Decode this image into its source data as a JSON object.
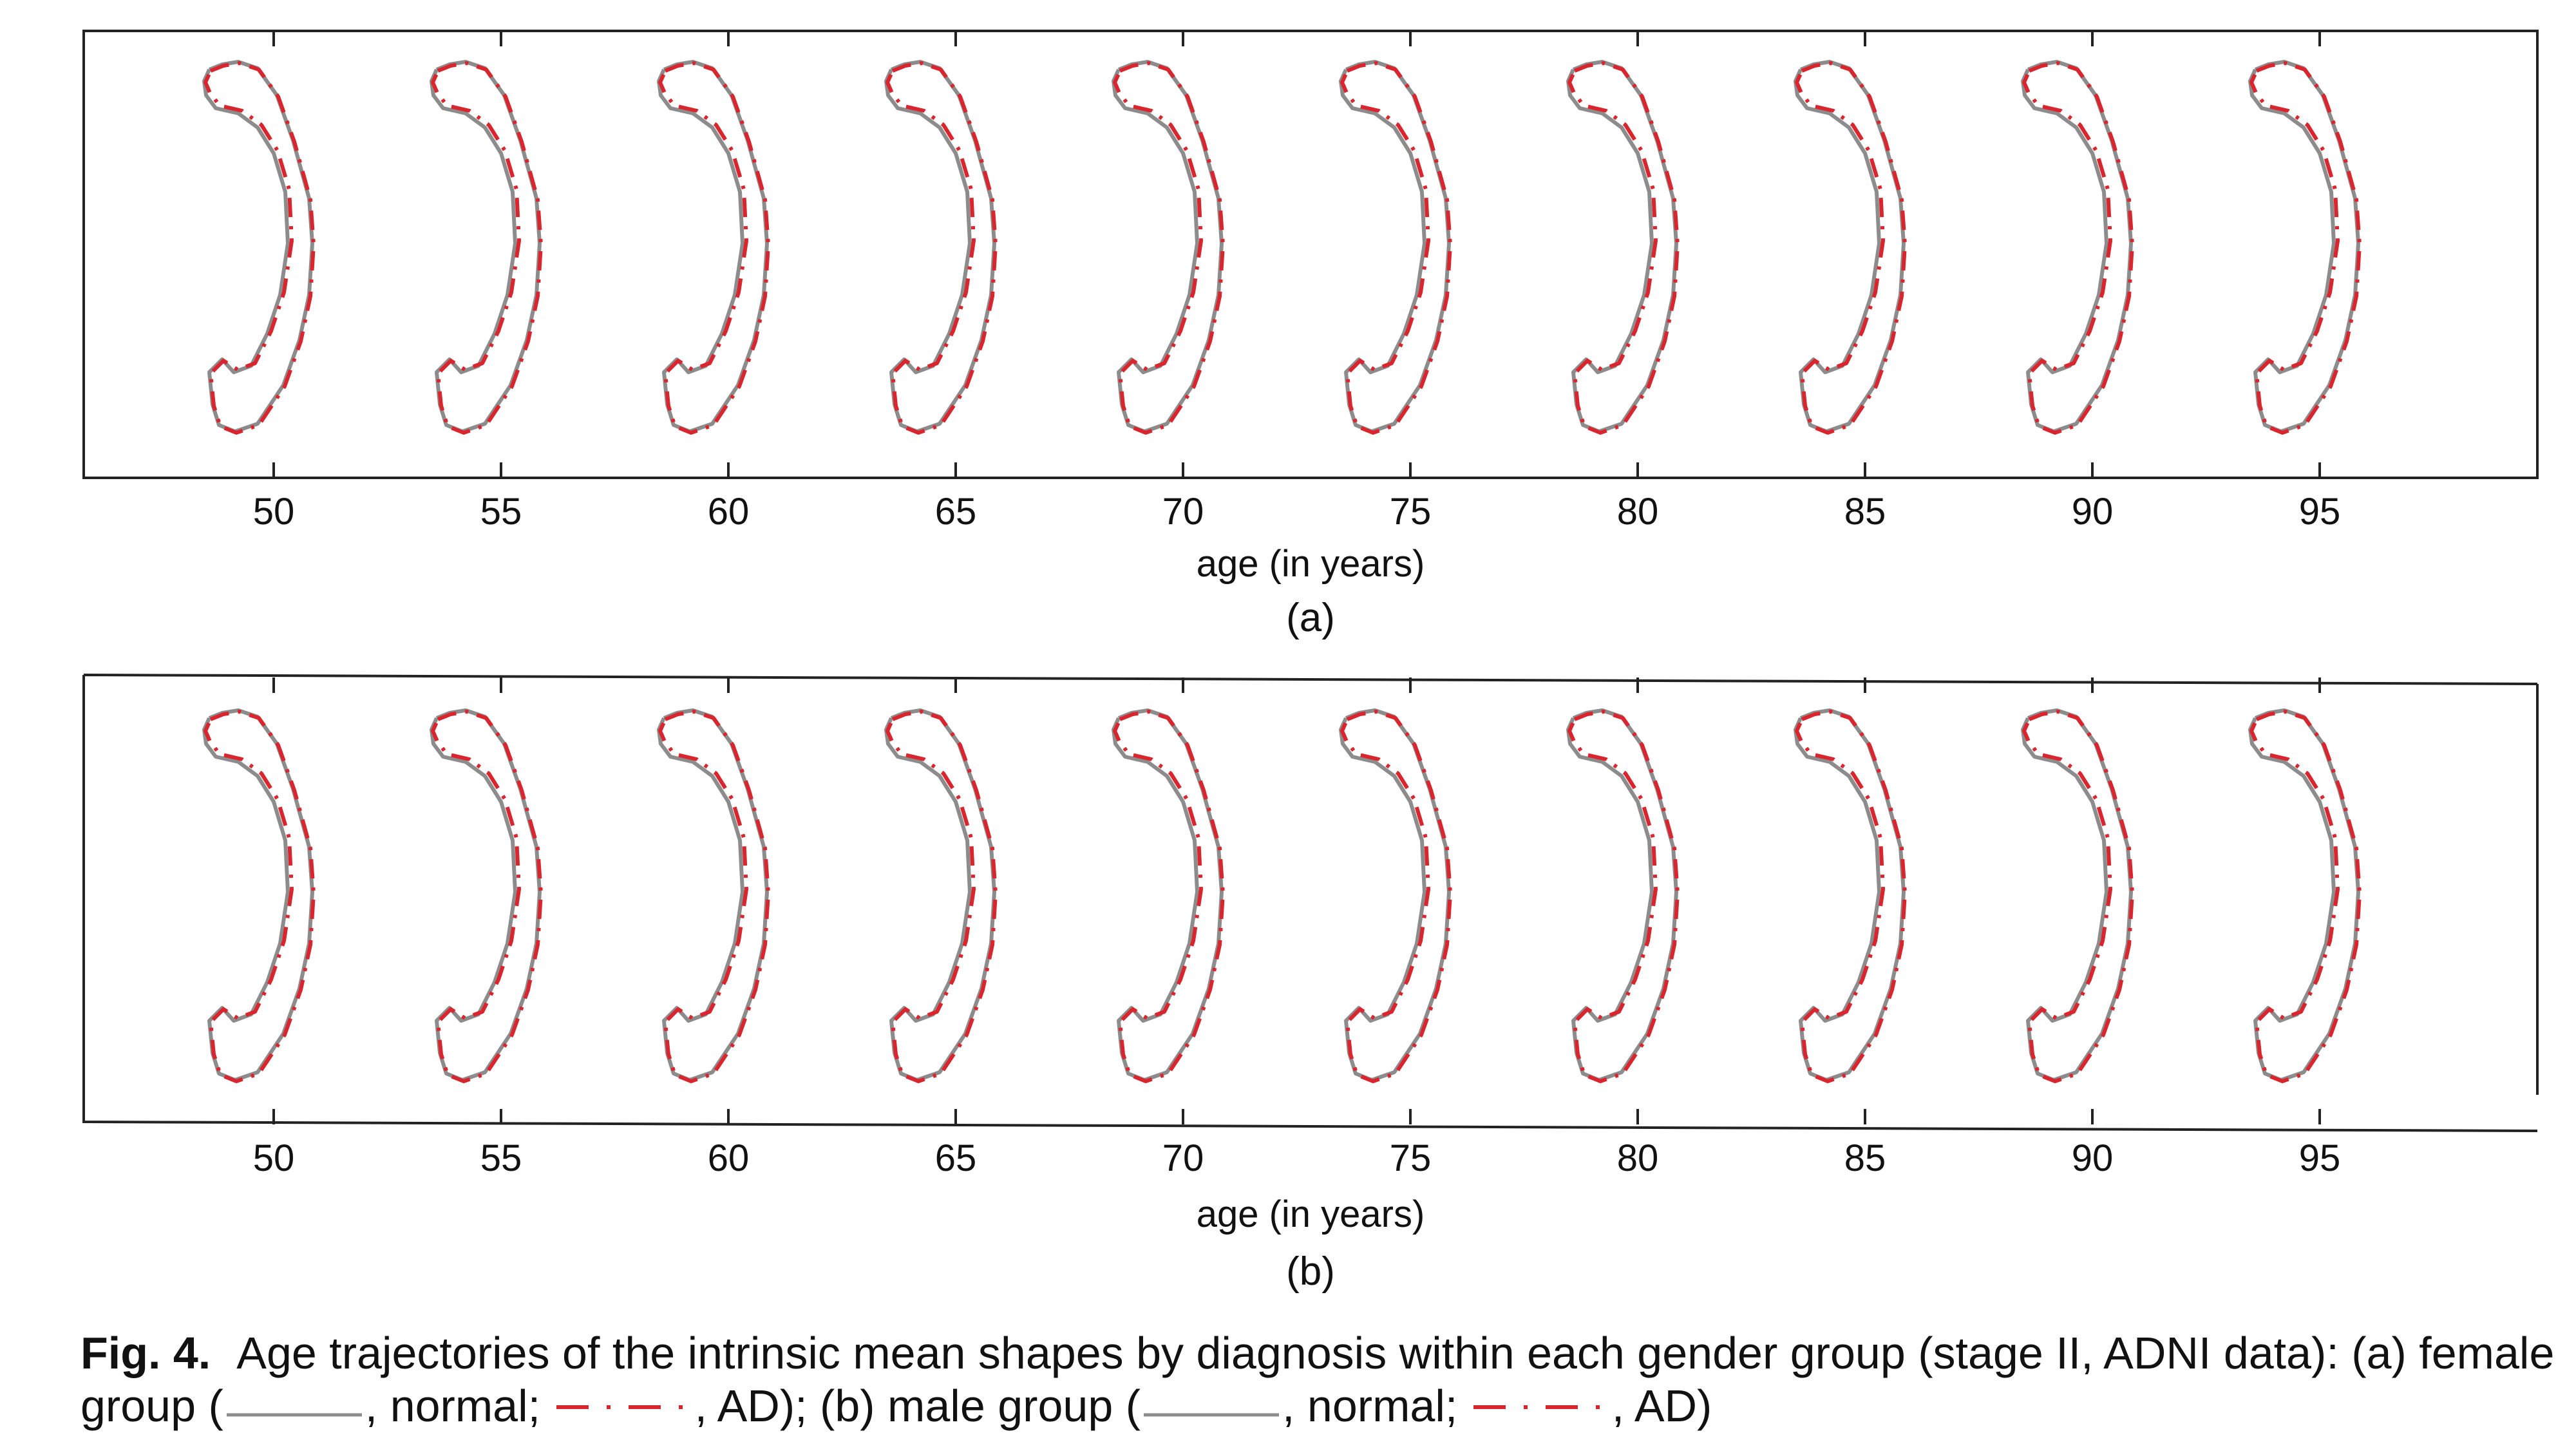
{
  "panels": [
    {
      "id": "a",
      "sublabel": "(a)",
      "xlabel": "age (in years)",
      "ticks": [
        "50",
        "55",
        "60",
        "65",
        "70",
        "75",
        "80",
        "85",
        "90",
        "95"
      ]
    },
    {
      "id": "b",
      "sublabel": "(b)",
      "xlabel": "age (in years)",
      "ticks": [
        "50",
        "55",
        "60",
        "65",
        "70",
        "75",
        "80",
        "85",
        "90",
        "95"
      ]
    }
  ],
  "caption": {
    "label": "Fig. 4.",
    "text_1": "Age trajectories of the intrinsic mean shapes by diagnosis within each gender group (stage II, ADNI data): (a) female group (",
    "text_2": ", normal; ",
    "text_3": ", AD); (b) male group (",
    "text_4": ", normal; ",
    "text_5": ", AD)"
  },
  "colors": {
    "normal": "#8c8c8c",
    "ad": "#d9262e",
    "axis": "#222222"
  }
}
